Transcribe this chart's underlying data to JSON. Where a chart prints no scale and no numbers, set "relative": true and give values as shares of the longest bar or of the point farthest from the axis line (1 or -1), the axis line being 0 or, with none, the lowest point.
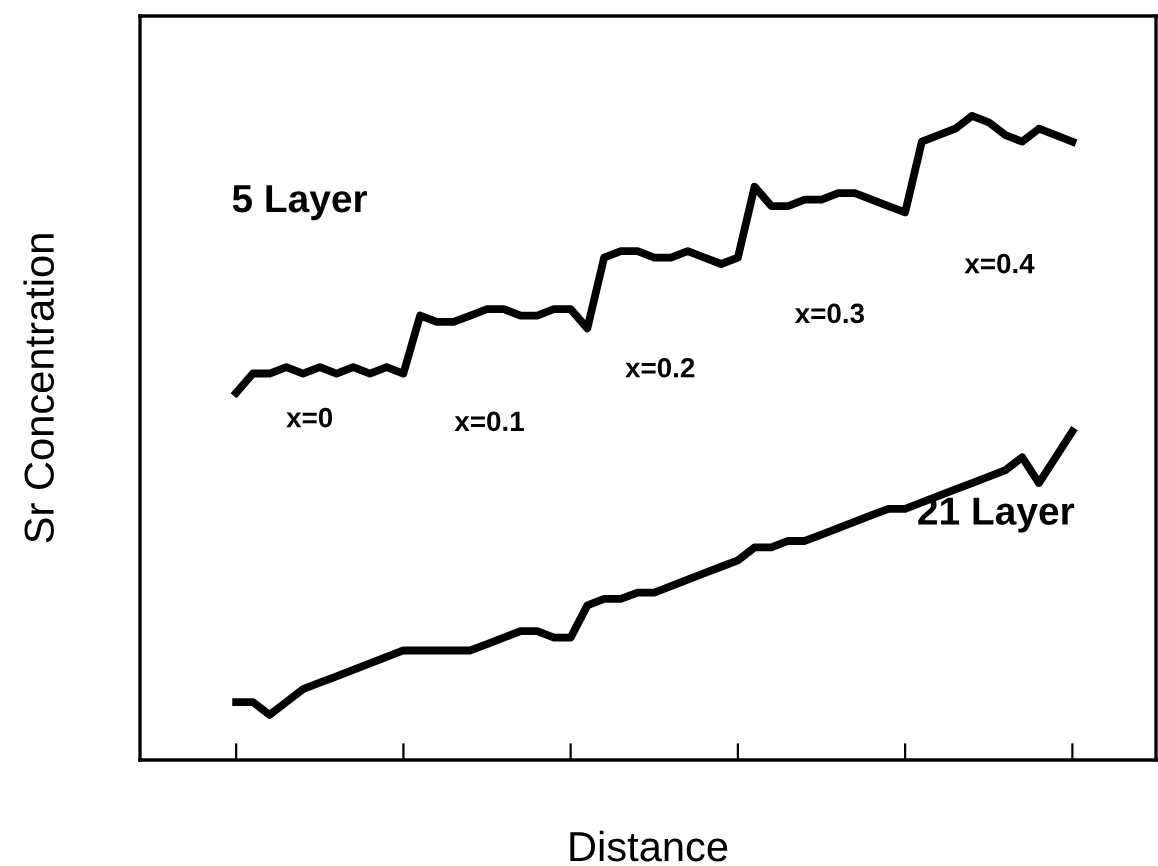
{
  "chart_data": {
    "type": "line",
    "relative": true,
    "xlabel": "Distance",
    "ylabel": "Sr Concentration",
    "categories": [
      null,
      null,
      null,
      null,
      null,
      null,
      null,
      null,
      null,
      null,
      null,
      null,
      null,
      null,
      null,
      null,
      null,
      null,
      null,
      null,
      null,
      null,
      null,
      null,
      null,
      null,
      null,
      null,
      null,
      null,
      null,
      null,
      null,
      null,
      null,
      null,
      null,
      null,
      null,
      null,
      null,
      null,
      null,
      null,
      null,
      null,
      null,
      null,
      null,
      null,
      null
    ],
    "legend": false,
    "grid": false,
    "marker": "none",
    "line_style": "solid",
    "series": [
      {
        "name": "5 Layer",
        "color": "#000000",
        "values": [
          0.57,
          0.6,
          0.6,
          0.61,
          0.6,
          0.61,
          0.6,
          0.61,
          0.6,
          0.61,
          0.6,
          0.69,
          0.68,
          0.68,
          0.69,
          0.7,
          0.7,
          0.69,
          0.69,
          0.7,
          0.7,
          0.67,
          0.78,
          0.79,
          0.79,
          0.78,
          0.78,
          0.79,
          0.78,
          0.77,
          0.78,
          0.89,
          0.86,
          0.86,
          0.87,
          0.87,
          0.88,
          0.88,
          0.87,
          0.86,
          0.85,
          0.96,
          0.97,
          0.98,
          1.0,
          0.99,
          0.97,
          0.96,
          0.98,
          0.97,
          0.96
        ]
      },
      {
        "name": "21 Layer",
        "color": "#000000",
        "values": [
          0.09,
          0.09,
          0.07,
          0.09,
          0.11,
          0.12,
          0.13,
          0.14,
          0.15,
          0.16,
          0.17,
          0.17,
          0.17,
          0.17,
          0.17,
          0.18,
          0.19,
          0.2,
          0.2,
          0.19,
          0.19,
          0.24,
          0.25,
          0.25,
          0.26,
          0.26,
          0.27,
          0.28,
          0.29,
          0.3,
          0.31,
          0.33,
          0.33,
          0.34,
          0.34,
          0.35,
          0.36,
          0.37,
          0.38,
          0.39,
          0.39,
          0.4,
          0.41,
          0.42,
          0.43,
          0.44,
          0.45,
          0.47,
          0.43,
          0.47,
          0.51
        ]
      }
    ],
    "annotations": [
      "x=0",
      "x=0.1",
      "x=0.2",
      "x=0.3",
      "x=0.4"
    ]
  }
}
